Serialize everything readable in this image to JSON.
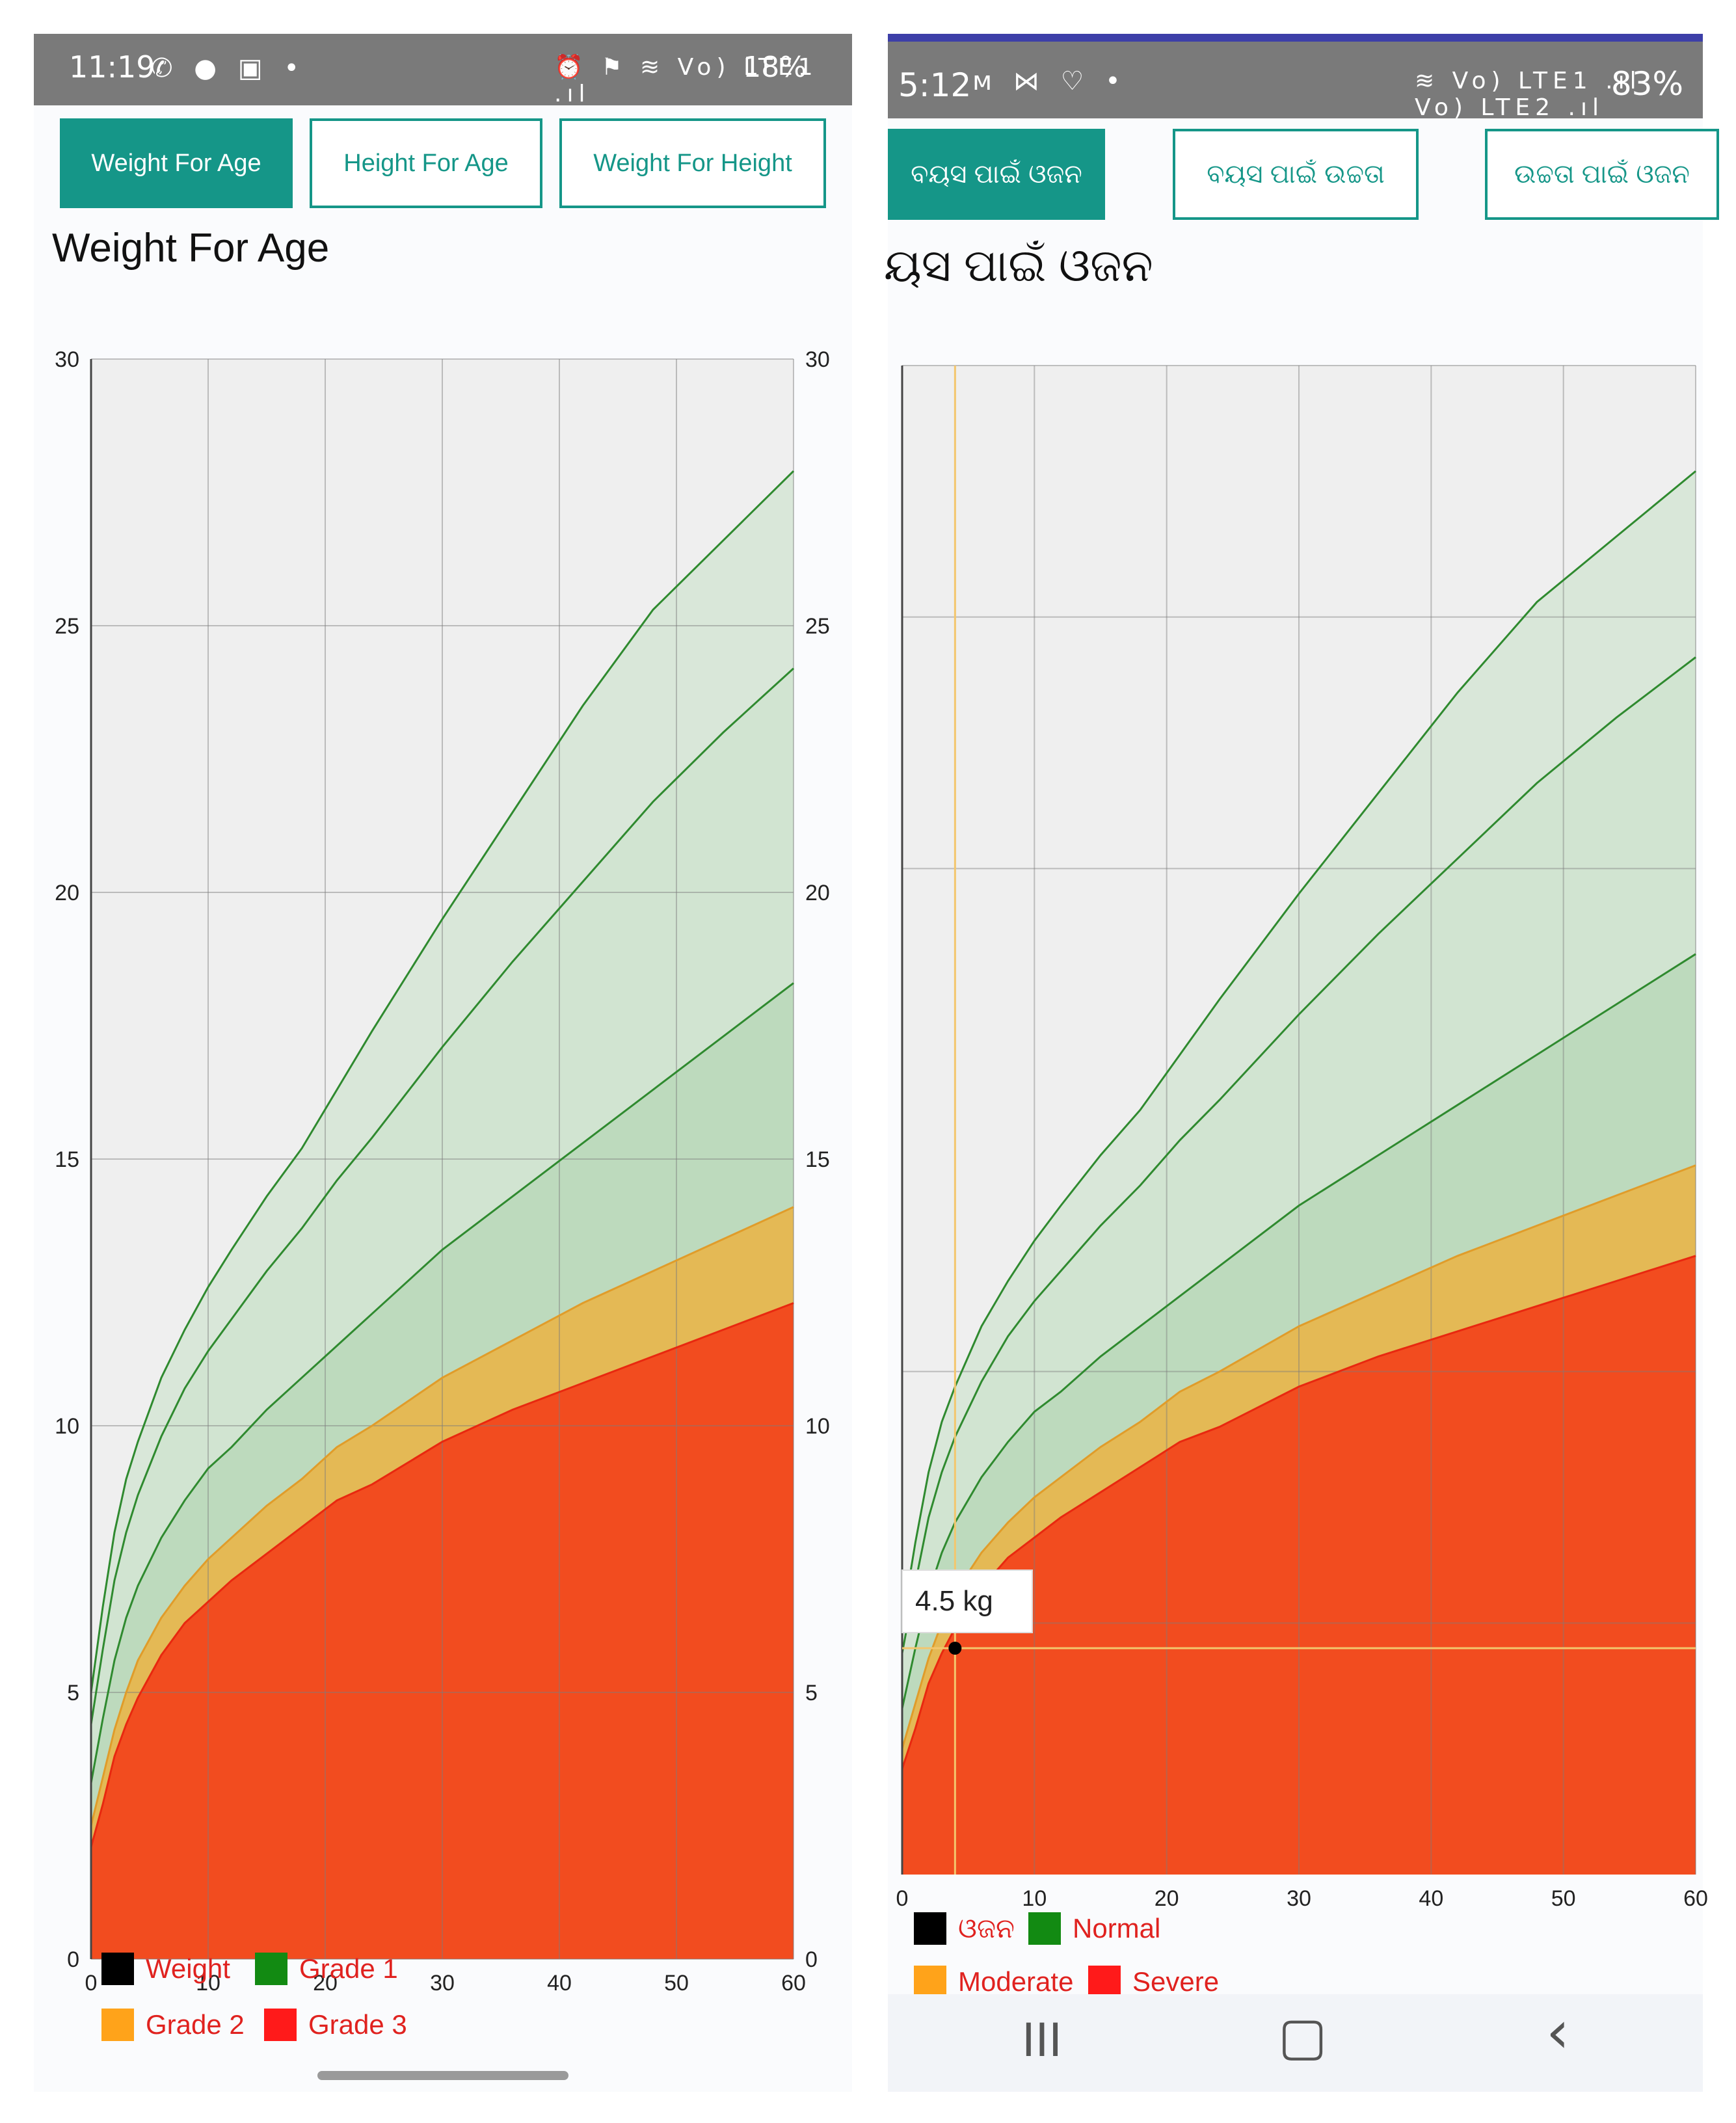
{
  "left": {
    "status": {
      "time": "11:19",
      "left_icons": "✆ ● ▣ •",
      "right_icons": "⏰ ⚑ ≋ Vo) LTE1 .ıl",
      "battery": "18%"
    },
    "tabs": [
      {
        "label": "Weight For Age",
        "active": true
      },
      {
        "label": "Height For Age",
        "active": false
      },
      {
        "label": "Weight For Height",
        "active": false
      }
    ],
    "title": "Weight For Age",
    "legend": [
      {
        "label": "Weight",
        "color": "#000000"
      },
      {
        "label": "Grade 1",
        "color": "#128a12"
      },
      {
        "label": "Grade 2",
        "color": "#ffa31a"
      },
      {
        "label": "Grade 3",
        "color": "#ff1a1a"
      }
    ]
  },
  "right": {
    "status": {
      "time": "5:12",
      "left_icons": "ᴍ ⋈ ♡ •",
      "right_icons": "≋ Vo) LTE1 .ıl Vo) LTE2 .ıl",
      "battery": "83%"
    },
    "tabs": [
      {
        "label": "ବୟସ ପାଇଁ ଓଜନ",
        "active": true
      },
      {
        "label": "ବୟସ ପାଇଁ ଉଚ୍ଚତା",
        "active": false
      },
      {
        "label": "ଉଚ୍ଚତା ପାଇଁ ଓଜନ",
        "active": false
      }
    ],
    "title": "ୟସ ପାଇଁ ଓଜନ",
    "tooltip": "4.5 kg",
    "legend": [
      {
        "label": "ଓଜନ",
        "color": "#000000"
      },
      {
        "label": "Normal",
        "color": "#128a12"
      },
      {
        "label": "Moderate",
        "color": "#ffa31a"
      },
      {
        "label": "Severe",
        "color": "#ff1a1a"
      }
    ],
    "nav": {
      "recents": "III",
      "home": "▢",
      "back": "‹"
    }
  },
  "chart_data": [
    {
      "type": "area",
      "title": "Weight For Age",
      "xlabel": "",
      "ylabel": "",
      "xlim": [
        0,
        60
      ],
      "ylim": [
        0,
        30
      ],
      "x_ticks": [
        0,
        10,
        20,
        30,
        40,
        50,
        60
      ],
      "y_ticks": [
        0,
        5,
        10,
        15,
        20,
        25,
        30
      ],
      "grid": true,
      "legend_position": "bottom-left",
      "x": [
        0,
        1,
        2,
        3,
        4,
        6,
        8,
        10,
        12,
        15,
        18,
        21,
        24,
        30,
        36,
        42,
        48,
        54,
        60
      ],
      "series": [
        {
          "name": "Grade 3",
          "values": [
            2.1,
            2.9,
            3.8,
            4.4,
            4.9,
            5.7,
            6.3,
            6.7,
            7.1,
            7.6,
            8.1,
            8.6,
            8.9,
            9.7,
            10.3,
            10.8,
            11.3,
            11.8,
            12.3
          ]
        },
        {
          "name": "Grade 2",
          "values": [
            2.5,
            3.4,
            4.3,
            5.0,
            5.6,
            6.4,
            7.0,
            7.5,
            7.9,
            8.5,
            9.0,
            9.6,
            10.0,
            10.9,
            11.6,
            12.3,
            12.9,
            13.5,
            14.1
          ]
        },
        {
          "name": "Grade 1",
          "values": [
            3.3,
            4.5,
            5.6,
            6.4,
            7.0,
            7.9,
            8.6,
            9.2,
            9.6,
            10.3,
            10.9,
            11.5,
            12.1,
            13.3,
            14.3,
            15.3,
            16.3,
            17.3,
            18.3
          ]
        },
        {
          "name": "",
          "values": [
            4.4,
            5.8,
            7.1,
            8.0,
            8.7,
            9.8,
            10.7,
            11.4,
            12.0,
            12.9,
            13.7,
            14.6,
            15.4,
            17.1,
            18.7,
            20.2,
            21.7,
            23.0,
            24.2
          ]
        },
        {
          "name": "",
          "values": [
            5.0,
            6.6,
            8.0,
            9.0,
            9.7,
            10.9,
            11.8,
            12.6,
            13.3,
            14.3,
            15.2,
            16.3,
            17.4,
            19.5,
            21.5,
            23.5,
            25.3,
            26.6,
            27.9
          ]
        }
      ]
    },
    {
      "type": "area",
      "title": "ୟସ ପାଇଁ ଓଜନ",
      "xlabel": "",
      "ylabel": "",
      "xlim": [
        0,
        60
      ],
      "ylim": [
        0,
        30
      ],
      "x_ticks": [
        0,
        10,
        20,
        30,
        40,
        50,
        60
      ],
      "grid": true,
      "legend_position": "bottom-left",
      "x": [
        0,
        1,
        2,
        3,
        4,
        6,
        8,
        10,
        12,
        15,
        18,
        21,
        24,
        30,
        36,
        42,
        48,
        54,
        60
      ],
      "series": [
        {
          "name": "Severe",
          "values": [
            2.1,
            2.9,
            3.8,
            4.4,
            4.9,
            5.7,
            6.3,
            6.7,
            7.1,
            7.6,
            8.1,
            8.6,
            8.9,
            9.7,
            10.3,
            10.8,
            11.3,
            11.8,
            12.3
          ]
        },
        {
          "name": "Moderate",
          "values": [
            2.5,
            3.4,
            4.3,
            5.0,
            5.6,
            6.4,
            7.0,
            7.5,
            7.9,
            8.5,
            9.0,
            9.6,
            10.0,
            10.9,
            11.6,
            12.3,
            12.9,
            13.5,
            14.1
          ]
        },
        {
          "name": "Normal",
          "values": [
            3.3,
            4.5,
            5.6,
            6.4,
            7.0,
            7.9,
            8.6,
            9.2,
            9.6,
            10.3,
            10.9,
            11.5,
            12.1,
            13.3,
            14.3,
            15.3,
            16.3,
            17.3,
            18.3
          ]
        },
        {
          "name": "",
          "values": [
            4.4,
            5.8,
            7.1,
            8.0,
            8.7,
            9.8,
            10.7,
            11.4,
            12.0,
            12.9,
            13.7,
            14.6,
            15.4,
            17.1,
            18.7,
            20.2,
            21.7,
            23.0,
            24.2
          ]
        },
        {
          "name": "",
          "values": [
            5.0,
            6.6,
            8.0,
            9.0,
            9.7,
            10.9,
            11.8,
            12.6,
            13.3,
            14.3,
            15.2,
            16.3,
            17.4,
            19.5,
            21.5,
            23.5,
            25.3,
            26.6,
            27.9
          ]
        }
      ],
      "highlight": {
        "x": 4,
        "y": 4.5,
        "label": "4.5 kg"
      }
    }
  ]
}
